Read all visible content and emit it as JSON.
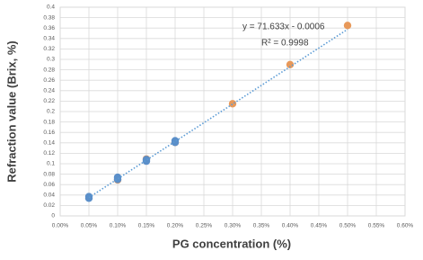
{
  "chart_data": {
    "type": "scatter",
    "x_label": "PG concentration (%)",
    "y_label": "Refraction value (Brix, %)",
    "annotations": [
      "y = 71.633x - 0.0006",
      "R² = 0.9998"
    ],
    "xlim": [
      0,
      0.6
    ],
    "xticks": [
      {
        "value": 0,
        "label": "0.00%"
      },
      {
        "value": 0.05,
        "label": "0.05%"
      },
      {
        "value": 0.1,
        "label": "0.10%"
      },
      {
        "value": 0.15,
        "label": "0.15%"
      },
      {
        "value": 0.2,
        "label": "0.20%"
      },
      {
        "value": 0.25,
        "label": "0.25%"
      },
      {
        "value": 0.3,
        "label": "0.30%"
      },
      {
        "value": 0.35,
        "label": "0.35%"
      },
      {
        "value": 0.4,
        "label": "0.40%"
      },
      {
        "value": 0.45,
        "label": "0.45%"
      },
      {
        "value": 0.5,
        "label": "0.50%"
      },
      {
        "value": 0.55,
        "label": "0.55%"
      },
      {
        "value": 0.6,
        "label": "0.60%"
      }
    ],
    "ylim": [
      0,
      0.4
    ],
    "yticks": [
      0,
      0.02,
      0.04,
      0.06,
      0.08,
      0.1,
      0.12,
      0.14,
      0.16,
      0.18,
      0.2,
      0.22,
      0.24,
      0.26,
      0.28,
      0.3,
      0.32,
      0.34,
      0.36,
      0.38,
      0.4
    ],
    "grid": true,
    "series": [
      {
        "color": "#e8995a",
        "x": [
          0.1,
          0.15,
          0.2,
          0.3,
          0.4,
          0.5
        ],
        "values": [
          0.069,
          0.109,
          0.141,
          0.215,
          0.29,
          0.365
        ]
      },
      {
        "color": "#5b8fc9",
        "x": [
          0.05,
          0.05,
          0.1,
          0.1,
          0.15,
          0.15,
          0.2,
          0.2
        ],
        "values": [
          0.037,
          0.034,
          0.074,
          0.07,
          0.108,
          0.105,
          0.144,
          0.141
        ]
      }
    ],
    "trendline": {
      "color": "#5b9bd5",
      "x": [
        0.05,
        0.5
      ],
      "values": [
        0.0352,
        0.3576
      ]
    }
  }
}
